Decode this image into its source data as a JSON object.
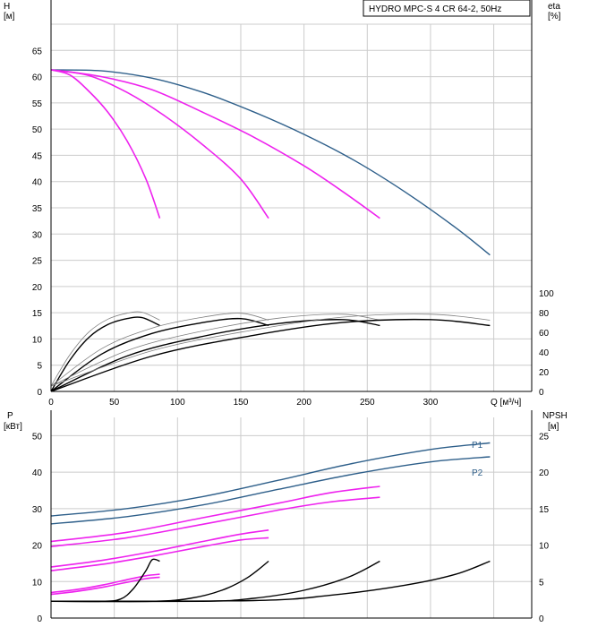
{
  "chart_data": [
    {
      "type": "line",
      "title": "HYDRO MPC-S 4 CR 64-2, 50Hz",
      "xlabel": "Q [м³/ч]",
      "x_ticks": [
        0,
        50,
        100,
        150,
        200,
        250,
        300
      ],
      "xlim": [
        0,
        380
      ],
      "left_axis": {
        "label": "H",
        "unit": "[м]",
        "ylim": [
          0,
          70
        ],
        "ticks": [
          0,
          5,
          10,
          15,
          20,
          25,
          30,
          35,
          40,
          45,
          50,
          55,
          60,
          65
        ]
      },
      "right_axis": {
        "label": "eta",
        "unit": "[%]",
        "ylim": [
          0,
          373.33
        ],
        "ticks": [
          0,
          20,
          40,
          60,
          80,
          100
        ]
      },
      "colors": {
        "system": "#2e5f8a",
        "pump": "#ee22ee",
        "eta": "#000000",
        "eta_secondary": "#808080",
        "grid": "#cccccc"
      },
      "series": [
        {
          "name": "H 4 pumps",
          "axis": "left",
          "color": "system",
          "points": [
            [
              0,
              61.3
            ],
            [
              40,
              61.1
            ],
            [
              80,
              59.7
            ],
            [
              120,
              57.0
            ],
            [
              160,
              53.3
            ],
            [
              200,
              49.0
            ],
            [
              240,
              44.0
            ],
            [
              280,
              38.0
            ],
            [
              320,
              31.2
            ],
            [
              347,
              26.0
            ]
          ]
        },
        {
          "name": "H 3 pumps",
          "axis": "left",
          "color": "pump",
          "points": [
            [
              0,
              61.3
            ],
            [
              40,
              60.0
            ],
            [
              80,
              57.5
            ],
            [
              120,
              53.2
            ],
            [
              160,
              48.5
            ],
            [
              200,
              43.0
            ],
            [
              230,
              38.2
            ],
            [
              260,
              33.0
            ]
          ]
        },
        {
          "name": "H 2 pumps",
          "axis": "left",
          "color": "pump",
          "points": [
            [
              0,
              61.3
            ],
            [
              30,
              60.2
            ],
            [
              60,
              57.0
            ],
            [
              90,
              52.5
            ],
            [
              120,
              47.0
            ],
            [
              150,
              40.5
            ],
            [
              172,
              33.0
            ]
          ]
        },
        {
          "name": "H 1 pump",
          "axis": "left",
          "color": "pump",
          "points": [
            [
              0,
              61.3
            ],
            [
              15,
              60.3
            ],
            [
              30,
              57.2
            ],
            [
              45,
              53.2
            ],
            [
              60,
              47.8
            ],
            [
              75,
              40.5
            ],
            [
              86,
              33.0
            ]
          ]
        },
        {
          "name": "eta 1 pump",
          "axis": "right",
          "color": "eta",
          "points": [
            [
              0,
              0
            ],
            [
              15,
              32
            ],
            [
              30,
              55
            ],
            [
              45,
              68
            ],
            [
              60,
              74
            ],
            [
              72,
              75
            ],
            [
              86,
              67
            ]
          ]
        },
        {
          "name": "eta 2 pumps",
          "axis": "right",
          "color": "eta",
          "points": [
            [
              0,
              0
            ],
            [
              40,
              38
            ],
            [
              80,
              59
            ],
            [
              120,
              70
            ],
            [
              150,
              74
            ],
            [
              172,
              67
            ]
          ]
        },
        {
          "name": "eta 3 pumps",
          "axis": "right",
          "color": "eta",
          "points": [
            [
              0,
              0
            ],
            [
              60,
              36
            ],
            [
              120,
              56
            ],
            [
              180,
              69
            ],
            [
              230,
              73
            ],
            [
              260,
              67
            ]
          ]
        },
        {
          "name": "eta 4 pumps",
          "axis": "right",
          "color": "eta",
          "points": [
            [
              0,
              0
            ],
            [
              80,
              36
            ],
            [
              160,
              57
            ],
            [
              230,
              70
            ],
            [
              300,
              73
            ],
            [
              347,
              67
            ]
          ]
        }
      ]
    },
    {
      "type": "line",
      "xlim": [
        0,
        380
      ],
      "left_axis": {
        "label": "P",
        "unit": "[кВт]",
        "ylim": [
          0,
          55
        ],
        "ticks": [
          0,
          10,
          20,
          30,
          40,
          50
        ]
      },
      "right_axis": {
        "label": "NPSH",
        "unit": "[м]",
        "ylim": [
          0,
          27.5
        ],
        "ticks": [
          0,
          5,
          10,
          15,
          20,
          25
        ]
      },
      "annotations": [
        "P1",
        "P2"
      ],
      "series": [
        {
          "name": "P1 4 pumps",
          "axis": "left",
          "color": "system",
          "points": [
            [
              0,
              28.0
            ],
            [
              60,
              30.0
            ],
            [
              120,
              33.3
            ],
            [
              180,
              37.8
            ],
            [
              240,
              42.5
            ],
            [
              300,
              46.2
            ],
            [
              347,
              48.0
            ]
          ]
        },
        {
          "name": "P2 4 pumps",
          "axis": "left",
          "color": "system",
          "points": [
            [
              0,
              25.8
            ],
            [
              60,
              27.8
            ],
            [
              120,
              31.0
            ],
            [
              180,
              35.3
            ],
            [
              240,
              39.5
            ],
            [
              300,
              42.8
            ],
            [
              347,
              44.2
            ]
          ]
        },
        {
          "name": "P1 3 pumps",
          "axis": "left",
          "color": "pump",
          "points": [
            [
              0,
              21.0
            ],
            [
              60,
              23.5
            ],
            [
              120,
              27.5
            ],
            [
              180,
              31.5
            ],
            [
              220,
              34.3
            ],
            [
              260,
              36.1
            ]
          ]
        },
        {
          "name": "P2 3 pumps",
          "axis": "left",
          "color": "pump",
          "points": [
            [
              0,
              19.6
            ],
            [
              60,
              22.0
            ],
            [
              120,
              25.7
            ],
            [
              180,
              29.6
            ],
            [
              220,
              31.8
            ],
            [
              260,
              33.1
            ]
          ]
        },
        {
          "name": "P1 2 pumps",
          "axis": "left",
          "color": "pump",
          "points": [
            [
              0,
              14.0
            ],
            [
              40,
              15.8
            ],
            [
              80,
              18.2
            ],
            [
              120,
              21.0
            ],
            [
              150,
              23.0
            ],
            [
              172,
              24.1
            ]
          ]
        },
        {
          "name": "P2 2 pumps",
          "axis": "left",
          "color": "pump",
          "points": [
            [
              0,
              13.0
            ],
            [
              40,
              14.7
            ],
            [
              80,
              17.0
            ],
            [
              120,
              19.6
            ],
            [
              150,
              21.4
            ],
            [
              172,
              22.0
            ]
          ]
        },
        {
          "name": "P1 1 pump",
          "axis": "left",
          "color": "pump",
          "points": [
            [
              0,
              7.0
            ],
            [
              20,
              7.8
            ],
            [
              40,
              9.0
            ],
            [
              60,
              10.5
            ],
            [
              75,
              11.6
            ],
            [
              86,
              12.0
            ]
          ]
        },
        {
          "name": "P2 1 pump",
          "axis": "left",
          "color": "pump",
          "points": [
            [
              0,
              6.5
            ],
            [
              20,
              7.3
            ],
            [
              40,
              8.4
            ],
            [
              60,
              9.8
            ],
            [
              75,
              10.8
            ],
            [
              86,
              11.2
            ]
          ]
        },
        {
          "name": "NPSH 1 pump",
          "axis": "right",
          "color": "eta",
          "points": [
            [
              0,
              2.3
            ],
            [
              40,
              2.3
            ],
            [
              55,
              2.6
            ],
            [
              65,
              4.0
            ],
            [
              75,
              6.5
            ],
            [
              80,
              8.0
            ],
            [
              86,
              7.8
            ]
          ]
        },
        {
          "name": "NPSH 2 pumps",
          "axis": "right",
          "color": "eta",
          "points": [
            [
              0,
              2.3
            ],
            [
              80,
              2.3
            ],
            [
              110,
              2.7
            ],
            [
              135,
              3.8
            ],
            [
              155,
              5.5
            ],
            [
              172,
              7.8
            ]
          ]
        },
        {
          "name": "NPSH 3 pumps",
          "axis": "right",
          "color": "eta",
          "points": [
            [
              0,
              2.3
            ],
            [
              120,
              2.3
            ],
            [
              160,
              2.7
            ],
            [
              200,
              3.8
            ],
            [
              235,
              5.6
            ],
            [
              260,
              7.8
            ]
          ]
        },
        {
          "name": "NPSH 4 pumps",
          "axis": "right",
          "color": "eta",
          "points": [
            [
              0,
              2.3
            ],
            [
              160,
              2.4
            ],
            [
              220,
              3.1
            ],
            [
              280,
              4.5
            ],
            [
              320,
              6.0
            ],
            [
              347,
              7.8
            ]
          ]
        }
      ]
    }
  ]
}
